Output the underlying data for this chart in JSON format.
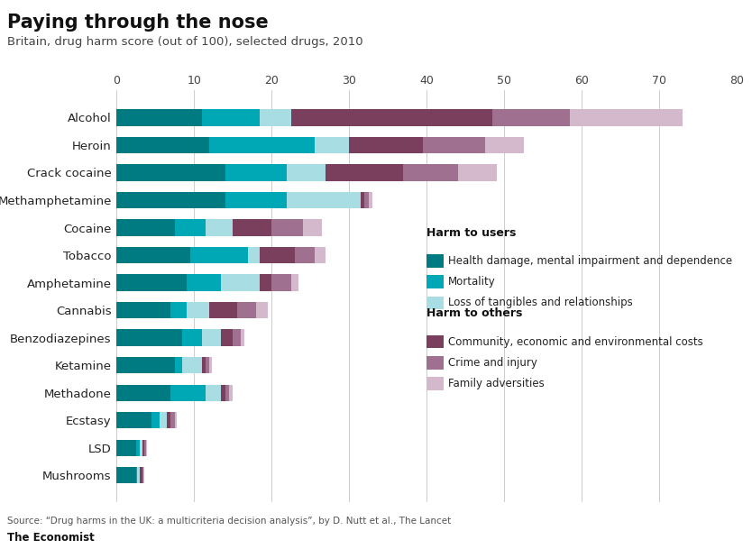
{
  "title": "Paying through the nose",
  "subtitle": "Britain, drug harm score (out of 100), selected drugs, 2010",
  "source": "Source: “Drug harms in the UK: a multicriteria decision analysis”, by D. Nutt et al., The Lancet",
  "credit": "The Economist",
  "drugs": [
    "Alcohol",
    "Heroin",
    "Crack cocaine",
    "Methamphetamine",
    "Cocaine",
    "Tobacco",
    "Amphetamine",
    "Cannabis",
    "Benzodiazepines",
    "Ketamine",
    "Methadone",
    "Ecstasy",
    "LSD",
    "Mushrooms"
  ],
  "health_damage": [
    11.0,
    12.0,
    14.0,
    14.0,
    7.5,
    9.5,
    9.0,
    7.0,
    8.5,
    7.5,
    7.0,
    4.5,
    2.5,
    2.5
  ],
  "mortality": [
    7.5,
    13.5,
    8.0,
    8.0,
    4.0,
    7.5,
    4.5,
    2.0,
    2.5,
    1.0,
    4.5,
    1.0,
    0.5,
    0.2
  ],
  "loss_tangibles": [
    4.0,
    4.5,
    5.0,
    9.5,
    3.5,
    1.5,
    5.0,
    3.0,
    2.5,
    2.5,
    2.0,
    1.0,
    0.3,
    0.3
  ],
  "community": [
    26.0,
    9.5,
    10.0,
    0.5,
    5.0,
    4.5,
    1.5,
    3.5,
    1.5,
    0.5,
    0.5,
    0.5,
    0.3,
    0.3
  ],
  "crime": [
    10.0,
    8.0,
    7.0,
    0.5,
    4.0,
    2.5,
    2.5,
    2.5,
    1.0,
    0.5,
    0.5,
    0.5,
    0.2,
    0.2
  ],
  "family": [
    14.5,
    5.0,
    5.0,
    0.5,
    2.5,
    1.5,
    1.0,
    1.5,
    0.5,
    0.3,
    0.5,
    0.3,
    0.1,
    0.1
  ],
  "color_health": "#007b82",
  "color_mortality": "#00a8b5",
  "color_loss": "#a8dde3",
  "color_community": "#7b3f5e",
  "color_crime": "#a07090",
  "color_family": "#d4b8cc",
  "xlim": [
    0,
    80
  ],
  "xticks": [
    0,
    10,
    20,
    30,
    40,
    50,
    60,
    70,
    80
  ],
  "bar_height": 0.6,
  "background_color": "#ffffff",
  "grid_color": "#cccccc",
  "title_fontsize": 15,
  "subtitle_fontsize": 9.5,
  "label_fontsize": 9.5,
  "tick_fontsize": 9,
  "legend_fontsize": 8.5,
  "red_bar_color": "#e3001b"
}
